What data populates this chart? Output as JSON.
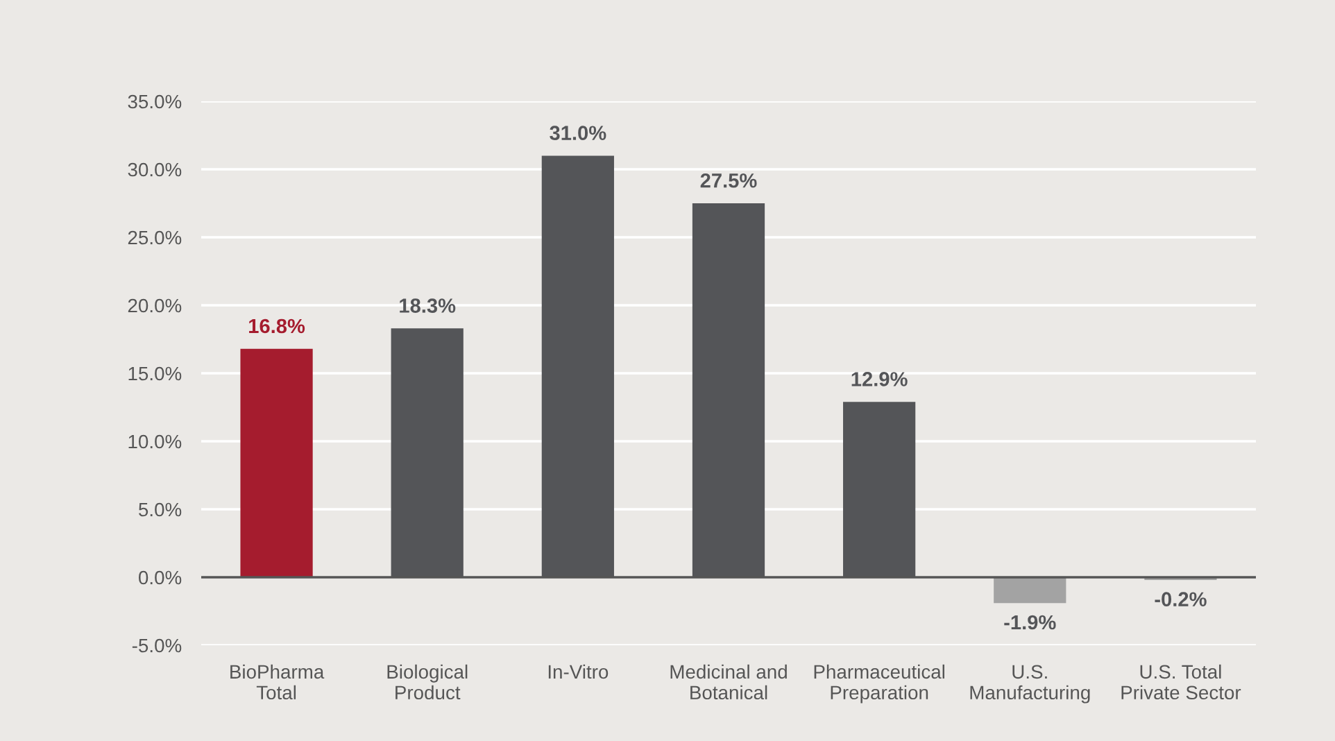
{
  "chart_data": {
    "type": "bar",
    "categories": [
      "BioPharma\nTotal",
      "Biological\nProduct",
      "In-Vitro",
      "Medicinal and\nBotanical",
      "Pharmaceutical\nPreparation",
      "U.S.\nManufacturing",
      "U.S. Total\nPrivate Sector"
    ],
    "values": [
      16.8,
      18.3,
      31.0,
      27.5,
      12.9,
      -1.9,
      -0.2
    ],
    "colors": [
      "#a51c2e",
      "#545558",
      "#545558",
      "#545558",
      "#545558",
      "#a3a3a3",
      "#a3a3a3"
    ],
    "value_labels": [
      "16.8%",
      "18.3%",
      "31.0%",
      "27.5%",
      "12.9%",
      "-1.9%",
      "-0.2%"
    ],
    "ylim": [
      -5,
      35
    ],
    "yticks": [
      {
        "value": -5,
        "label": "-5.0%"
      },
      {
        "value": 0,
        "label": "0.0%"
      },
      {
        "value": 5,
        "label": "5.0%"
      },
      {
        "value": 10,
        "label": "10.0%"
      },
      {
        "value": 15,
        "label": "15.0%"
      },
      {
        "value": 20,
        "label": "20.0%"
      },
      {
        "value": 25,
        "label": "25.0%"
      },
      {
        "value": 30,
        "label": "30.0%"
      },
      {
        "value": 35,
        "label": "35.0%"
      }
    ],
    "grid": "y",
    "legend": false
  }
}
